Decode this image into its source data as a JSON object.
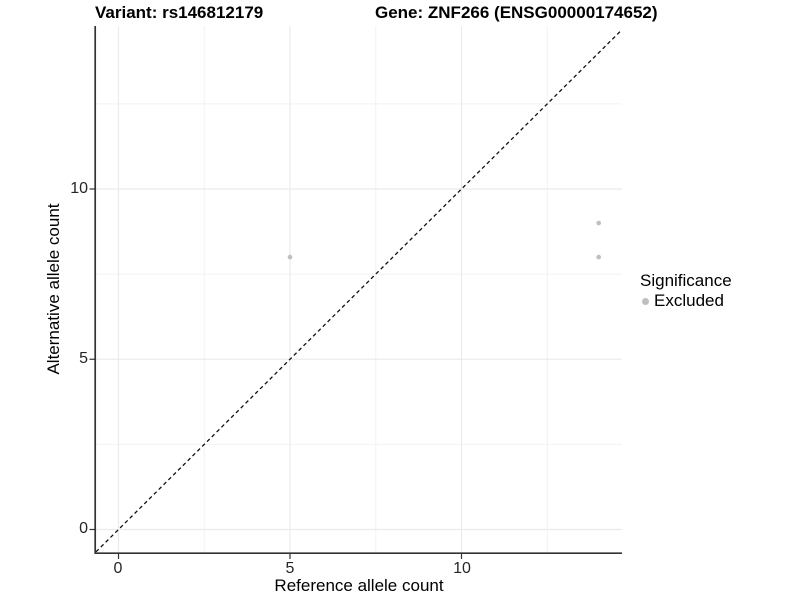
{
  "chart_data": {
    "type": "scatter",
    "title_variant": "Variant: rs146812179",
    "title_gene": "Gene: ZNF266 (ENSG00000174652)",
    "xlabel": "Reference allele count",
    "ylabel": "Alternative allele count",
    "x_ticks": [
      "0",
      "5",
      "10"
    ],
    "y_ticks": [
      "0",
      "5",
      "10"
    ],
    "x_tick_values": [
      0,
      5,
      10
    ],
    "y_tick_values": [
      0,
      5,
      10
    ],
    "x_minor_tick_values": [
      2.5,
      7.5,
      12.5
    ],
    "y_minor_tick_values": [
      2.5,
      7.5,
      12.5
    ],
    "xlim": [
      -0.66,
      14.68
    ],
    "ylim": [
      -0.72,
      14.78
    ],
    "grid": true,
    "points": [
      {
        "x": 5,
        "y": 8,
        "significance": "Excluded"
      },
      {
        "x": 14,
        "y": 9,
        "significance": "Excluded"
      },
      {
        "x": 14,
        "y": 8,
        "significance": "Excluded"
      }
    ],
    "reference_line": {
      "type": "identity y=x",
      "style": "dashed",
      "color": "#111111"
    },
    "legend": {
      "title": "Significance",
      "position": "right",
      "items": [
        {
          "label": "Excluded",
          "color": "#bfbfbf"
        }
      ]
    },
    "colors": {
      "point": "#bfbfbf",
      "axis": "#333333",
      "grid_major": "#ebebeb",
      "grid_minor": "#f2f2f2",
      "background": "#ffffff"
    }
  }
}
